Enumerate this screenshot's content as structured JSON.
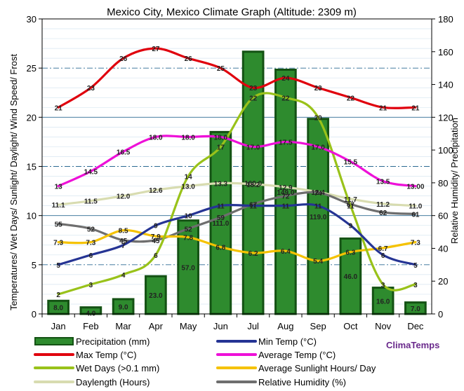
{
  "chart_data": {
    "type": "bar",
    "title": "Mexico City, Mexico Climate Graph (Altitude: 2309 m)",
    "ylabel_left": "Temperatures/ Wet Days/ Sunlight/ Daylight/ Wind Speed/ Frost",
    "ylabel_right": "Relative Humidity/ Precipitation",
    "categories": [
      "Jan",
      "Feb",
      "Mar",
      "Apr",
      "May",
      "Jun",
      "Jul",
      "Aug",
      "Sep",
      "Oct",
      "Nov",
      "Dec"
    ],
    "left_axis": {
      "min": 0,
      "max": 30,
      "ticks": [
        "0",
        "5",
        "10",
        "15",
        "20",
        "25",
        "30"
      ]
    },
    "right_axis": {
      "min": 0,
      "max": 180,
      "ticks": [
        "0",
        "20",
        "40",
        "60",
        "80",
        "100",
        "120",
        "140",
        "160",
        "180"
      ]
    },
    "series": [
      {
        "name": "Precipitation (mm)",
        "kind": "bar",
        "axis": "right",
        "color": "#2e8b2e",
        "values": [
          8.0,
          4.0,
          9.0,
          23.0,
          57.0,
          111.0,
          160.0,
          149.0,
          119.0,
          46.0,
          16.0,
          7.0
        ],
        "labels": [
          "8.0",
          "4.0",
          "9.0",
          "23.0",
          "57.0",
          "111.0",
          "160.0",
          "149.0",
          "119.0",
          "46.0",
          "16.0",
          "7.0"
        ]
      },
      {
        "name": "Max Temp (°C)",
        "kind": "line",
        "axis": "left",
        "color": "#e0000d",
        "values": [
          21,
          23,
          26,
          27,
          26,
          25,
          23,
          24,
          23,
          22,
          21,
          21
        ],
        "labels": [
          "21",
          "23",
          "26",
          "27",
          "26",
          "25",
          "23",
          "24",
          "23",
          "22",
          "21",
          "21"
        ]
      },
      {
        "name": "Min Temp (°C)",
        "kind": "line",
        "axis": "left",
        "color": "#253494",
        "values": [
          5,
          6,
          7,
          9,
          10,
          11,
          11,
          11,
          11,
          9,
          6,
          5
        ],
        "labels": [
          "5",
          "6",
          "7",
          "9",
          "10",
          "11",
          "11",
          "11",
          "11",
          "9",
          "6",
          "5"
        ]
      },
      {
        "name": "Average Temp (°C)",
        "kind": "line",
        "axis": "left",
        "color": "#ee10d8",
        "values": [
          13,
          14.5,
          16.5,
          18.0,
          18.0,
          18.0,
          17.0,
          17.5,
          17.0,
          15.5,
          13.5,
          13.0
        ],
        "labels": [
          "13",
          "14.5",
          "16.5",
          "18.0",
          "18.0",
          "18.0",
          "17.0",
          "17.5",
          "17.0",
          "15.5",
          "13.5",
          "13.00"
        ]
      },
      {
        "name": "Wet Days (>0.1 mm)",
        "kind": "line",
        "axis": "left",
        "color": "#99c21a",
        "values": [
          2,
          3,
          4,
          6,
          14,
          17,
          22,
          22,
          20,
          11,
          3,
          3
        ],
        "labels": [
          "2",
          "3",
          "4",
          "6",
          "14",
          "17",
          "22",
          "22",
          "20",
          "11",
          "3",
          "3"
        ]
      },
      {
        "name": "Average Sunlight Hours/ Day",
        "kind": "line",
        "axis": "left",
        "color": "#f5c200",
        "values": [
          7.3,
          7.3,
          8.5,
          7.9,
          7.8,
          6.8,
          6.2,
          6.4,
          5.4,
          6.3,
          6.7,
          7.3
        ],
        "labels": [
          "7.3",
          "7.3",
          "8.5",
          "7.9",
          "7.8",
          "6.8",
          "6.2",
          "6.4",
          "5.4",
          "6.3",
          "6.7",
          "7.3"
        ]
      },
      {
        "name": "Daylength (Hours)",
        "kind": "line",
        "axis": "left",
        "color": "#d8dcb0",
        "values": [
          11.1,
          11.5,
          12.0,
          12.6,
          13.0,
          13.3,
          13.2,
          12.9,
          12.4,
          11.7,
          11.2,
          11.0
        ],
        "labels": [
          "11.1",
          "11.5",
          "12.0",
          "12.6",
          "13.0",
          "13.3",
          "13.2",
          "12.9",
          "12.4",
          "11.7",
          "11.2",
          "11.0"
        ]
      },
      {
        "name": "Relative Humidity (%)",
        "kind": "line",
        "axis": "right",
        "color": "#6e6e6e",
        "values": [
          55,
          52,
          45,
          45,
          52,
          59,
          67,
          72,
          74,
          67,
          62,
          61
        ],
        "labels": [
          "55",
          "52",
          "45",
          "45",
          "52",
          "59",
          "67",
          "72",
          "74",
          "67",
          "62",
          "61"
        ]
      }
    ],
    "legend_order": [
      "Precipitation (mm)",
      "Min Temp (°C)",
      "Max Temp (°C)",
      "Average Temp (°C)",
      "Wet Days (>0.1 mm)",
      "Average Sunlight Hours/ Day",
      "Daylength (Hours)",
      "Relative Humidity (%)"
    ]
  },
  "brand": "ClimaTemps"
}
